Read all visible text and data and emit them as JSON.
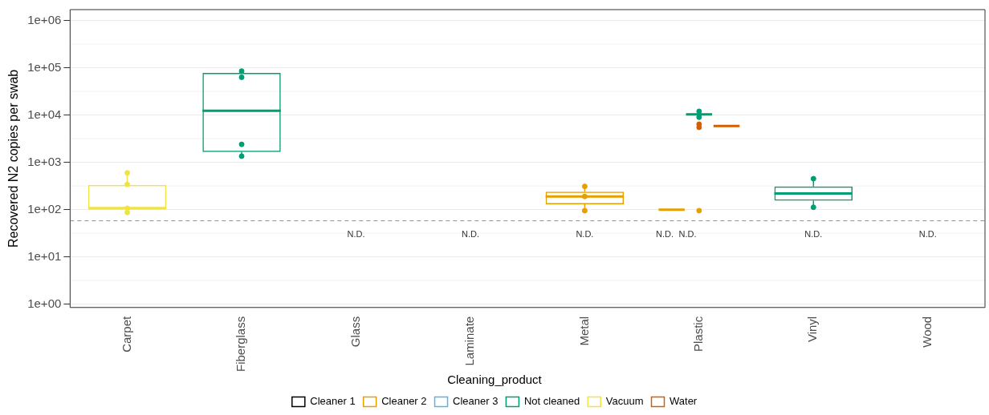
{
  "chart_data": {
    "type": "box",
    "ylabel": "Recovered N2 copies per swab",
    "legend_title": "Cleaning_product",
    "legend": "bottom",
    "log": "y",
    "categories": [
      "Carpet",
      "Fiberglass",
      "Glass",
      "Laminate",
      "Metal",
      "Plastic",
      "Vinyl",
      "Wood"
    ],
    "ylim": [
      0.85,
      1700000
    ],
    "yticks": [
      {
        "value": 1,
        "label": "1e+00"
      },
      {
        "value": 10,
        "label": "1e+01"
      },
      {
        "value": 100,
        "label": "1e+02"
      },
      {
        "value": 1000,
        "label": "1e+03"
      },
      {
        "value": 10000,
        "label": "1e+04"
      },
      {
        "value": 100000,
        "label": "1e+05"
      },
      {
        "value": 1000000,
        "label": "1e+06"
      }
    ],
    "series": [
      {
        "name": "Cleaner 1",
        "color": "#000000",
        "boxes": [
          null,
          null,
          null,
          null,
          null,
          null,
          null,
          null
        ]
      },
      {
        "name": "Cleaner 2",
        "color": "#e69f00",
        "boxes": [
          null,
          null,
          null,
          null,
          {
            "low": 95,
            "q1": 130,
            "median": 190,
            "q3": 240,
            "high": 310
          },
          {
            "low": 100,
            "q1": 100,
            "median": 100,
            "q3": 100,
            "high": 100
          },
          null,
          null
        ]
      },
      {
        "name": "Cleaner 3",
        "color": "#56b4e9",
        "boxes": [
          null,
          null,
          null,
          null,
          null,
          null,
          null,
          null
        ]
      },
      {
        "name": "Not cleaned",
        "color": "#009e73",
        "boxes": [
          null,
          {
            "low": 1350,
            "q1": 1660,
            "median": 12300,
            "q3": 78000,
            "high": 85000
          },
          null,
          null,
          null,
          {
            "low": 9000,
            "q1": 9800,
            "median": 10300,
            "q3": 10800,
            "high": 12000
          },
          {
            "low": 112,
            "q1": 155,
            "median": 220,
            "q3": 310,
            "high": 450
          },
          null
        ]
      },
      {
        "name": "Vacuum",
        "color": "#f0e442",
        "boxes": [
          {
            "low": 87,
            "q1": 107,
            "median": 107,
            "q3": 335,
            "high": 600
          },
          null,
          null,
          null,
          null,
          null,
          null,
          null
        ]
      },
      {
        "name": "Water",
        "color": "#d55e00",
        "boxes": [
          null,
          null,
          null,
          null,
          null,
          {
            "low": 5800,
            "q1": 5850,
            "median": 5900,
            "q3": 5950,
            "high": 6000
          },
          null,
          null
        ]
      },
      {
        "type": "scatter",
        "color": "#f0e442",
        "x": [
          "Carpet",
          "Carpet",
          "Carpet",
          "Carpet"
        ],
        "values": [
          600,
          340,
          107,
          87
        ]
      },
      {
        "type": "scatter",
        "color": "#009e73",
        "x": [
          "Fiberglass",
          "Fiberglass",
          "Fiberglass",
          "Fiberglass",
          "Fiberglass",
          "Plastic",
          "Plastic",
          "Plastic",
          "Vinyl",
          "Vinyl"
        ],
        "values": [
          85000,
          63000,
          2400,
          null,
          1350,
          12000,
          null,
          9000,
          450,
          112
        ]
      },
      {
        "type": "scatter",
        "color": "#e69f00",
        "x": [
          "Metal",
          "Metal",
          "Metal",
          "Plastic",
          "Plastic"
        ],
        "values": [
          310,
          190,
          95,
          null,
          95
        ]
      },
      {
        "type": "scatter",
        "color": "#d55e00",
        "x": [
          "Plastic",
          "Plastic"
        ],
        "values": [
          6400,
          5500
        ]
      }
    ],
    "ref_lines": [
      {
        "axis": "y",
        "value": 58,
        "color": "#d9735e",
        "line_style": "dashed"
      }
    ],
    "annotations": [
      "N.D.",
      "N.D.",
      "N.D.",
      "N.D.",
      "N.D.",
      "N.D.",
      "N.D."
    ],
    "grid": "y"
  }
}
